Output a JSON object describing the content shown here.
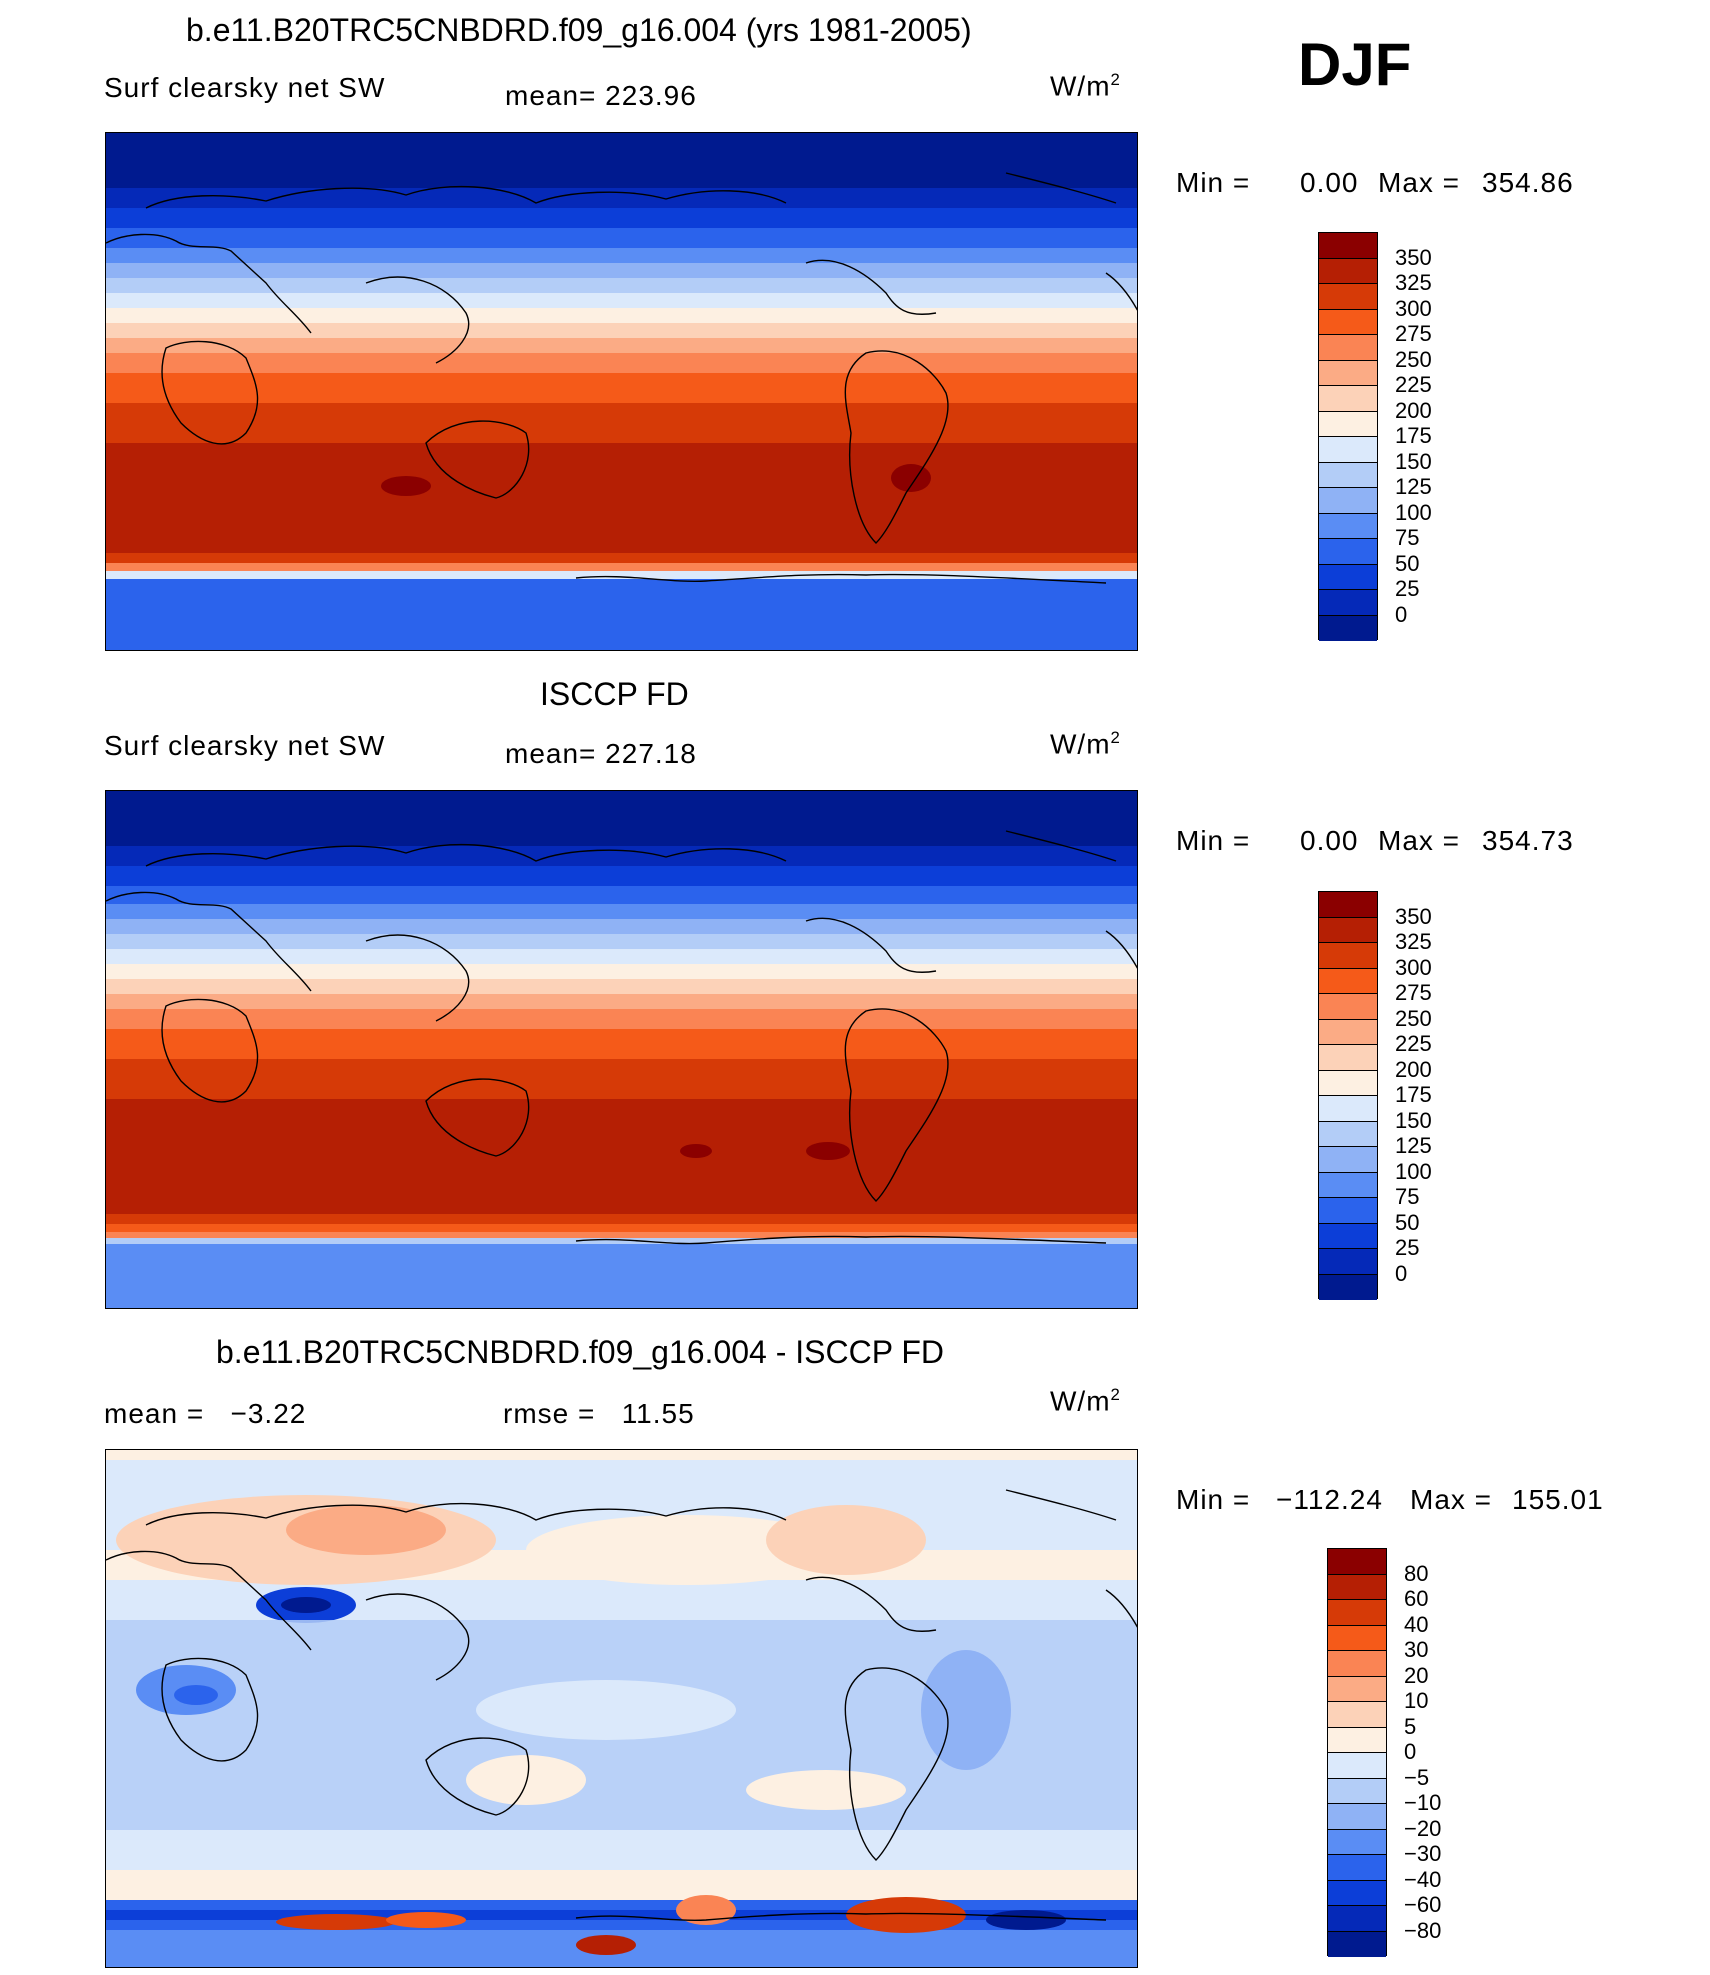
{
  "season": "DJF",
  "units_label": "W/m",
  "units_sup": "2",
  "panels": [
    {
      "title": "b.e11.B20TRC5CNBDRD.f09_g16.004 (yrs 1981-2005)",
      "left_label": "Surf clearsky net SW",
      "mean_label": "mean= 223.96",
      "minmax": {
        "min_text": "Min =",
        "min_val": "0.00",
        "max_text": "Max =",
        "max_val": "354.86"
      },
      "colorbar": {
        "colors": [
          "#8b0000",
          "#b51f04",
          "#d63a07",
          "#f55a19",
          "#fa8454",
          "#fbab85",
          "#fcd2b8",
          "#fdf0e2",
          "#dbe9fb",
          "#b3cdf7",
          "#8fb2f5",
          "#5a8df4",
          "#2b63ec",
          "#0c3ed8",
          "#0529b8",
          "#001a8f"
        ],
        "labels": [
          "350",
          "325",
          "300",
          "275",
          "250",
          "225",
          "200",
          "175",
          "150",
          "125",
          "100",
          "75",
          "50",
          "25",
          "0"
        ]
      }
    },
    {
      "title": "ISCCP FD",
      "left_label": "Surf clearsky net SW",
      "mean_label": "mean= 227.18",
      "minmax": {
        "min_text": "Min =",
        "min_val": "0.00",
        "max_text": "Max =",
        "max_val": "354.73"
      },
      "colorbar": {
        "colors": [
          "#8b0000",
          "#b51f04",
          "#d63a07",
          "#f55a19",
          "#fa8454",
          "#fbab85",
          "#fcd2b8",
          "#fdf0e2",
          "#dbe9fb",
          "#b3cdf7",
          "#8fb2f5",
          "#5a8df4",
          "#2b63ec",
          "#0c3ed8",
          "#0529b8",
          "#001a8f"
        ],
        "labels": [
          "350",
          "325",
          "300",
          "275",
          "250",
          "225",
          "200",
          "175",
          "150",
          "125",
          "100",
          "75",
          "50",
          "25",
          "0"
        ]
      }
    },
    {
      "title": "b.e11.B20TRC5CNBDRD.f09_g16.004 - ISCCP FD",
      "left_label": "mean =   −3.22",
      "mean_label": "rmse =   11.55",
      "minmax": {
        "min_text": "Min =",
        "min_val": "−112.24",
        "max_text": "Max =",
        "max_val": "155.01"
      },
      "colorbar": {
        "colors": [
          "#8b0000",
          "#b51f04",
          "#d63a07",
          "#f55a19",
          "#fa8454",
          "#fbab85",
          "#fcd2b8",
          "#fdf0e2",
          "#dbe9fb",
          "#b3cdf7",
          "#8fb2f5",
          "#5a8df4",
          "#2b63ec",
          "#0c3ed8",
          "#0529b8",
          "#001a8f"
        ],
        "labels": [
          "80",
          "60",
          "40",
          "30",
          "20",
          "10",
          "5",
          "0",
          "−5",
          "−10",
          "−20",
          "−30",
          "−40",
          "−60",
          "−80"
        ]
      }
    }
  ]
}
